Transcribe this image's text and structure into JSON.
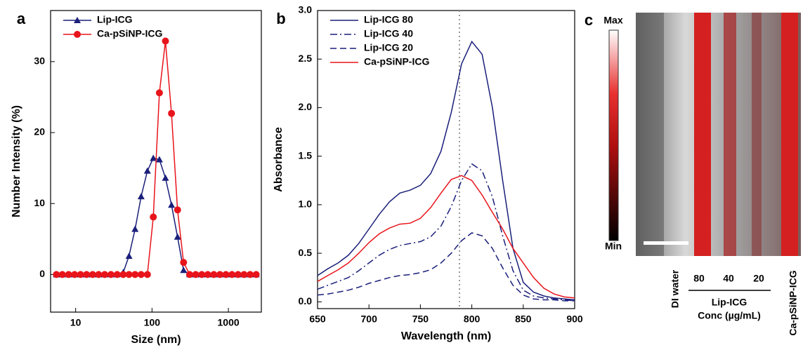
{
  "chart_data": [
    {
      "type": "line",
      "panel": "a",
      "xlabel": "Size (nm)",
      "ylabel": "Number Intensity (%)",
      "xscale": "log",
      "xlim": [
        4.7,
        2700
      ],
      "xticks": [
        10,
        100,
        1000
      ],
      "ylim": [
        -5.3,
        37.2
      ],
      "yticks": [
        0,
        10,
        20,
        30
      ],
      "legend": "upper-left",
      "x": [
        5.6,
        6.7,
        8.1,
        9.7,
        11.6,
        13.9,
        16.7,
        20,
        24,
        29,
        35,
        42,
        50,
        60,
        72,
        87,
        104,
        125,
        150,
        180,
        216,
        259,
        311,
        373,
        448,
        537,
        645,
        774,
        928,
        1114,
        1337,
        1604,
        1925,
        2310
      ],
      "series": [
        {
          "name": "Lip-ICG",
          "color": "#1a1f7a",
          "marker": "triangle",
          "dash": "solid",
          "values": [
            0,
            0,
            0,
            0,
            0,
            0,
            0,
            0,
            0,
            0,
            0,
            0.3,
            2.6,
            6.4,
            11.0,
            14.6,
            16.4,
            16.2,
            13.6,
            9.8,
            5.3,
            0.6,
            0,
            0,
            0,
            0,
            0,
            0,
            0,
            0,
            0,
            0,
            0,
            0
          ]
        },
        {
          "name": "Ca-pSiNP-ICG",
          "color": "#e8141b",
          "marker": "circle",
          "dash": "solid",
          "values": [
            0,
            0,
            0,
            0,
            0,
            0,
            0,
            0,
            0,
            0,
            0,
            0,
            0,
            0,
            0,
            0,
            8.1,
            25.6,
            32.9,
            22.7,
            9.1,
            1.7,
            0,
            0,
            0,
            0,
            0,
            0,
            0,
            0,
            0,
            0,
            0,
            0
          ]
        }
      ]
    },
    {
      "type": "line",
      "panel": "b",
      "xlabel": "Wavelength (nm)",
      "ylabel": "Absorbance",
      "xscale": "linear",
      "xlim": [
        650,
        900
      ],
      "xticks": [
        650,
        700,
        750,
        800,
        850,
        900
      ],
      "ylim": [
        -0.07,
        3.0
      ],
      "yticks": [
        {
          "value": 0,
          "label": "0.0"
        },
        0.5,
        {
          "value": 1,
          "label": "1.0"
        },
        1.5,
        {
          "value": 2,
          "label": "2.0"
        },
        2.5,
        {
          "value": 3,
          "label": "3.0"
        }
      ],
      "vline": 788,
      "legend": "upper-left",
      "x": [
        650,
        660,
        670,
        680,
        690,
        700,
        710,
        720,
        730,
        740,
        750,
        760,
        770,
        780,
        790,
        800,
        810,
        820,
        830,
        840,
        850,
        860,
        870,
        880,
        890,
        900
      ],
      "series": [
        {
          "name": "Lip-ICG 80",
          "color": "#1a1f7a",
          "dash": "solid",
          "values": [
            0.27,
            0.34,
            0.4,
            0.48,
            0.6,
            0.75,
            0.9,
            1.03,
            1.12,
            1.15,
            1.2,
            1.32,
            1.55,
            1.95,
            2.45,
            2.68,
            2.55,
            2.0,
            1.25,
            0.55,
            0.2,
            0.1,
            0.06,
            0.04,
            0.03,
            0.02
          ]
        },
        {
          "name": "Lip-ICG 40",
          "color": "#1a1f7a",
          "dash": "dashdot",
          "values": [
            0.13,
            0.17,
            0.21,
            0.25,
            0.32,
            0.4,
            0.48,
            0.54,
            0.58,
            0.6,
            0.62,
            0.67,
            0.78,
            0.98,
            1.25,
            1.42,
            1.35,
            1.08,
            0.68,
            0.32,
            0.12,
            0.06,
            0.04,
            0.03,
            0.02,
            0.01
          ]
        },
        {
          "name": "Lip-ICG 20",
          "color": "#1a1f7a",
          "dash": "dash",
          "values": [
            0.07,
            0.08,
            0.1,
            0.12,
            0.15,
            0.19,
            0.22,
            0.25,
            0.27,
            0.28,
            0.3,
            0.33,
            0.4,
            0.5,
            0.63,
            0.71,
            0.68,
            0.55,
            0.35,
            0.17,
            0.07,
            0.03,
            0.02,
            0.02,
            0.01,
            0.01
          ]
        },
        {
          "name": "Ca-pSiNP-ICG",
          "color": "#e8141b",
          "dash": "solid",
          "values": [
            0.21,
            0.27,
            0.33,
            0.4,
            0.5,
            0.61,
            0.7,
            0.76,
            0.8,
            0.81,
            0.86,
            0.97,
            1.12,
            1.26,
            1.3,
            1.25,
            1.1,
            0.92,
            0.75,
            0.55,
            0.4,
            0.25,
            0.14,
            0.08,
            0.05,
            0.04
          ]
        }
      ]
    },
    {
      "type": "image",
      "panel": "c",
      "colorbar_max": "Max",
      "colorbar_min": "Min",
      "sample_left": "DI water",
      "sample_right": "Ca-pSiNP-ICG",
      "concentrations": [
        "80",
        "40",
        "20"
      ],
      "group_label": "Lip-ICG",
      "group_unit": "Conc (µg/mL)"
    }
  ]
}
